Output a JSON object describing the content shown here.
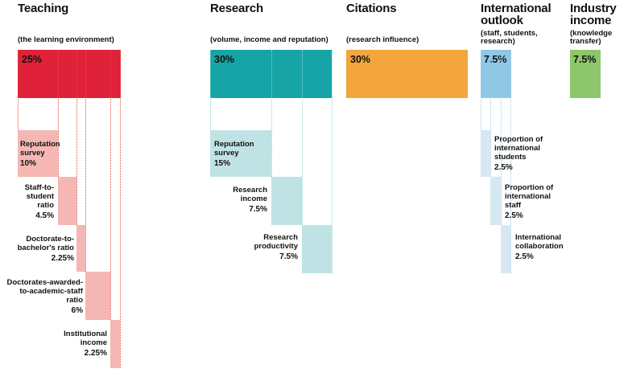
{
  "colors": {
    "teaching": "#e0213a",
    "teaching_sub": "#f4b7b3",
    "teaching_dot": "#e8493c",
    "research": "#17a4a6",
    "research_sub": "#bfe3e4",
    "research_dot": "#8fd0d2",
    "citations": "#f2a63d",
    "international": "#8fc7e6",
    "international_sub": "#d6e9f2",
    "international_dot": "#9ccbe4",
    "industry": "#8dc76b"
  },
  "pillars": {
    "teaching": {
      "title": "Teaching",
      "subtitle": "(the learning environment)",
      "weight": "25%",
      "value": 25
    },
    "research": {
      "title": "Research",
      "subtitle": "(volume, income and reputation)",
      "weight": "30%",
      "value": 30
    },
    "citations": {
      "title": "Citations",
      "subtitle": "(research influence)",
      "weight": "30%",
      "value": 30
    },
    "international": {
      "title_1": "International",
      "title_2": "outlook",
      "subtitle_1": "(staff, students,",
      "subtitle_2": "research)",
      "weight": "7.5%",
      "value": 7.5
    },
    "industry": {
      "title_1": "Industry",
      "title_2": "income",
      "subtitle_1": "(knowledge",
      "subtitle_2": "transfer)",
      "weight": "7.5%",
      "value": 7.5
    }
  },
  "teaching_metrics": [
    {
      "lines": [
        "Reputation",
        "survey"
      ],
      "value": "10%",
      "weight": 10
    },
    {
      "lines": [
        "Staff-to-",
        "student",
        "ratio"
      ],
      "value": "4.5%",
      "weight": 4.5
    },
    {
      "lines": [
        "Doctorate-to-",
        "bachelor's ratio"
      ],
      "value": "2.25%",
      "weight": 2.25
    },
    {
      "lines": [
        "Doctorates-awarded-",
        "to-academic-staff",
        "ratio"
      ],
      "value": "6%",
      "weight": 6
    },
    {
      "lines": [
        "Institutional",
        "income"
      ],
      "value": "2.25%",
      "weight": 2.25
    }
  ],
  "research_metrics": [
    {
      "lines": [
        "Reputation",
        "survey"
      ],
      "value": "15%",
      "weight": 15
    },
    {
      "lines": [
        "Research",
        "income"
      ],
      "value": "7.5%",
      "weight": 7.5
    },
    {
      "lines": [
        "Research",
        "productivity"
      ],
      "value": "7.5%",
      "weight": 7.5
    }
  ],
  "international_metrics": [
    {
      "lines": [
        "Proportion of",
        "international",
        "students"
      ],
      "value": "2.5%",
      "weight": 2.5
    },
    {
      "lines": [
        "Proportion of",
        "international",
        "staff"
      ],
      "value": "2.5%",
      "weight": 2.5
    },
    {
      "lines": [
        "International",
        "collaboration"
      ],
      "value": "2.5%",
      "weight": 2.5
    }
  ]
}
